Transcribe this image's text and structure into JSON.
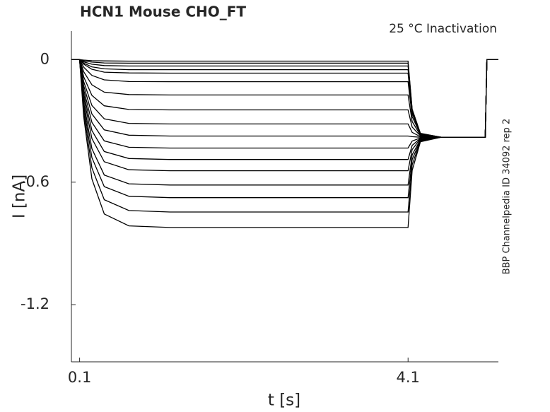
{
  "chart_data": {
    "type": "line",
    "title": "HCN1  Mouse  CHO_FT",
    "annotation": "25 °C  Inactivation",
    "side_note": "BBP Channelpedia ID 34092 rep 2",
    "x_label": "t [s]",
    "y_label": "I [nA]",
    "x": [
      0,
      0.1,
      0.15,
      0.25,
      0.4,
      0.7,
      1.2,
      2,
      3,
      4.1,
      4.15,
      4.25,
      4.5,
      5.04,
      5.06,
      5.2
    ],
    "xlim": [
      0,
      5.2
    ],
    "xticks": [
      0.1,
      4.1
    ],
    "ylim": [
      -1.48,
      0.14
    ],
    "yticks": [
      0,
      -0.6,
      -1.2
    ],
    "grid": false,
    "series": [
      {
        "color": "#000000",
        "values": [
          0,
          0,
          -0.002,
          -0.005,
          -0.006,
          -0.007,
          -0.007,
          -0.007,
          -0.007,
          -0.007,
          -0.242,
          -0.361,
          -0.38,
          -0.38,
          0,
          0
        ]
      },
      {
        "color": "#000000",
        "values": [
          0,
          0,
          -0.006,
          -0.012,
          -0.016,
          -0.017,
          -0.017,
          -0.017,
          -0.017,
          -0.017,
          -0.245,
          -0.362,
          -0.38,
          -0.38,
          0,
          0
        ]
      },
      {
        "color": "#000000",
        "values": [
          0,
          0,
          -0.011,
          -0.022,
          -0.029,
          -0.031,
          -0.031,
          -0.031,
          -0.031,
          -0.031,
          -0.25,
          -0.363,
          -0.38,
          -0.38,
          0,
          0
        ]
      },
      {
        "color": "#000000",
        "values": [
          0,
          0,
          -0.017,
          -0.035,
          -0.045,
          -0.049,
          -0.049,
          -0.049,
          -0.049,
          -0.049,
          -0.257,
          -0.363,
          -0.38,
          -0.38,
          0,
          0
        ]
      },
      {
        "color": "#000000",
        "values": [
          0,
          0,
          -0.022,
          -0.047,
          -0.061,
          -0.065,
          -0.066,
          -0.066,
          -0.066,
          -0.066,
          -0.263,
          -0.364,
          -0.38,
          -0.38,
          0,
          0
        ]
      },
      {
        "color": "#000000",
        "values": [
          0,
          0,
          -0.037,
          -0.077,
          -0.099,
          -0.107,
          -0.108,
          -0.108,
          -0.108,
          -0.108,
          -0.279,
          -0.366,
          -0.38,
          -0.38,
          0,
          0
        ]
      },
      {
        "color": "#000000",
        "values": [
          0,
          0,
          -0.059,
          -0.123,
          -0.159,
          -0.171,
          -0.173,
          -0.173,
          -0.173,
          -0.173,
          -0.303,
          -0.37,
          -0.38,
          -0.38,
          0,
          0
        ]
      },
      {
        "color": "#000000",
        "values": [
          0,
          0,
          -0.084,
          -0.175,
          -0.226,
          -0.244,
          -0.246,
          -0.246,
          -0.246,
          -0.246,
          -0.33,
          -0.373,
          -0.38,
          -0.38,
          0,
          0
        ]
      },
      {
        "color": "#000000",
        "values": [
          0,
          0,
          -0.107,
          -0.224,
          -0.29,
          -0.312,
          -0.315,
          -0.315,
          -0.315,
          -0.315,
          -0.356,
          -0.377,
          -0.38,
          -0.38,
          0,
          0
        ]
      },
      {
        "color": "#000000",
        "values": [
          0,
          0,
          -0.127,
          -0.266,
          -0.344,
          -0.37,
          -0.374,
          -0.374,
          -0.374,
          -0.374,
          -0.377,
          -0.38,
          -0.38,
          -0.38,
          0,
          0
        ]
      },
      {
        "color": "#000000",
        "values": [
          0,
          0,
          -0.147,
          -0.307,
          -0.398,
          -0.429,
          -0.433,
          -0.433,
          -0.433,
          -0.433,
          -0.399,
          -0.383,
          -0.38,
          -0.38,
          0,
          0
        ]
      },
      {
        "color": "#000000",
        "values": [
          0,
          0,
          -0.166,
          -0.347,
          -0.45,
          -0.484,
          -0.489,
          -0.489,
          -0.489,
          -0.489,
          -0.42,
          -0.385,
          -0.38,
          -0.38,
          0,
          0
        ]
      },
      {
        "color": "#000000",
        "values": [
          0,
          0,
          -0.185,
          -0.386,
          -0.5,
          -0.539,
          -0.544,
          -0.544,
          -0.544,
          -0.544,
          -0.44,
          -0.388,
          -0.38,
          -0.38,
          0,
          0
        ]
      },
      {
        "color": "#000000",
        "values": [
          0,
          0,
          -0.209,
          -0.436,
          -0.565,
          -0.608,
          -0.614,
          -0.614,
          -0.614,
          -0.614,
          -0.466,
          -0.392,
          -0.38,
          -0.38,
          0,
          0
        ]
      },
      {
        "color": "#000000",
        "values": [
          0,
          0,
          -0.23,
          -0.48,
          -0.622,
          -0.669,
          -0.676,
          -0.676,
          -0.676,
          -0.676,
          -0.489,
          -0.395,
          -0.38,
          -0.38,
          0,
          0
        ]
      },
      {
        "color": "#000000",
        "values": [
          0,
          0,
          -0.254,
          -0.53,
          -0.686,
          -0.739,
          -0.746,
          -0.746,
          -0.746,
          -0.746,
          -0.515,
          -0.398,
          -0.38,
          -0.38,
          0,
          0
        ]
      },
      {
        "color": "#000000",
        "values": [
          0,
          0,
          -0.279,
          -0.584,
          -0.756,
          -0.814,
          -0.822,
          -0.822,
          -0.822,
          -0.822,
          -0.543,
          -0.402,
          -0.38,
          -0.38,
          0,
          0
        ]
      }
    ]
  }
}
